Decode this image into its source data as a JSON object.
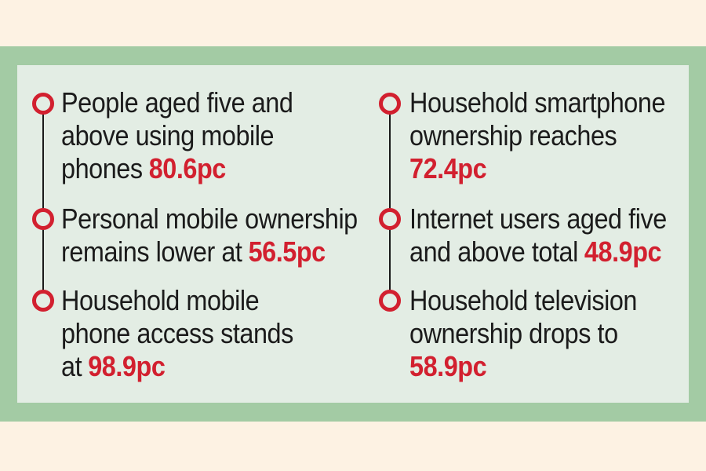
{
  "colors": {
    "background": "#FDF2E3",
    "frame_green": "#A3CBA4",
    "panel_green": "#E3EDE4",
    "accent_red": "#D2202F",
    "text_black": "#1B1B1B"
  },
  "columns": [
    {
      "items": [
        {
          "lines": [
            {
              "text": "People aged five and",
              "value": ""
            },
            {
              "text": "above using mobile",
              "value": ""
            },
            {
              "text": "phones",
              "value": "80.6pc"
            }
          ]
        },
        {
          "lines": [
            {
              "text": "Personal mobile ownership",
              "value": ""
            },
            {
              "text": "remains lower at",
              "value": "56.5pc"
            }
          ]
        },
        {
          "lines": [
            {
              "text": "Household mobile",
              "value": ""
            },
            {
              "text": "phone access stands",
              "value": ""
            },
            {
              "text": "at",
              "value": "98.9pc"
            }
          ]
        }
      ]
    },
    {
      "items": [
        {
          "lines": [
            {
              "text": "Household smartphone",
              "value": ""
            },
            {
              "text": "ownership reaches",
              "value": ""
            },
            {
              "text": "",
              "value": "72.4pc"
            }
          ]
        },
        {
          "lines": [
            {
              "text": "Internet users aged five",
              "value": ""
            },
            {
              "text": "and above total",
              "value": "48.9pc"
            }
          ]
        },
        {
          "lines": [
            {
              "text": "Household television",
              "value": ""
            },
            {
              "text": "ownership drops to",
              "value": ""
            },
            {
              "text": "",
              "value": "58.9pc"
            }
          ]
        }
      ]
    }
  ],
  "chart_data": {
    "type": "table",
    "title": "",
    "unit": "pc",
    "items": [
      {
        "label": "People aged five and above using mobile phones",
        "value": 80.6
      },
      {
        "label": "Personal mobile ownership remains lower at",
        "value": 56.5
      },
      {
        "label": "Household mobile phone access stands at",
        "value": 98.9
      },
      {
        "label": "Household smartphone ownership reaches",
        "value": 72.4
      },
      {
        "label": "Internet users aged five and above total",
        "value": 48.9
      },
      {
        "label": "Household television ownership drops to",
        "value": 58.9
      }
    ]
  }
}
